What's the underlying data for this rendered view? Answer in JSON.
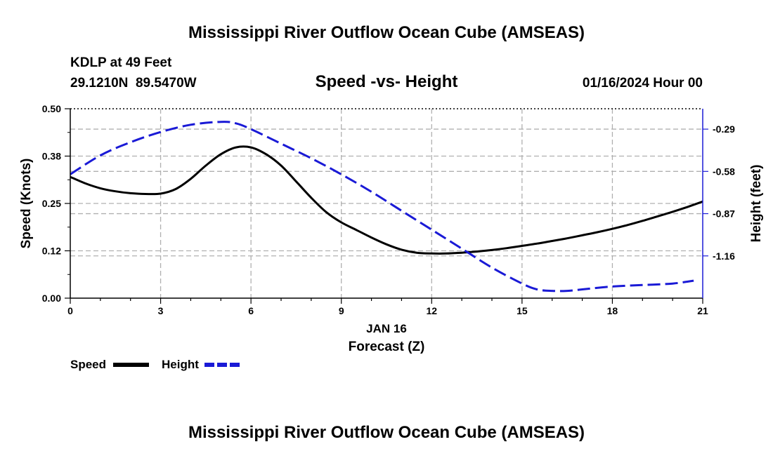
{
  "chart_data": {
    "type": "line",
    "title": "Mississippi River Outflow Ocean Cube (AMSEAS)",
    "footer_title": "Mississippi River Outflow Ocean Cube (AMSEAS)",
    "station": "KDLP at 49 Feet",
    "coordinates": "29.1210N  89.5470W",
    "subtitle": "Speed -vs- Height",
    "datetime": "01/16/2024 Hour 00",
    "xlabel": "Forecast (Z)",
    "date_label": "JAN 16",
    "ylabel": "Speed (Knots)",
    "y2label": "Height (feet)",
    "xlim": [
      0,
      21
    ],
    "ylim": [
      0,
      0.5
    ],
    "y2lim": [
      -1.45,
      -0.15
    ],
    "x_ticks": [
      0,
      3,
      6,
      9,
      12,
      15,
      18,
      21
    ],
    "x_tick_labels": [
      "0",
      "3",
      "6",
      "9",
      "12",
      "15",
      "18",
      "21"
    ],
    "y_ticks": [
      0,
      0.125,
      0.25,
      0.375,
      0.5
    ],
    "y_tick_labels": [
      "0.00",
      "0.12",
      "0.25",
      "0.38",
      "0.50"
    ],
    "y2_ticks": [
      -0.29,
      -0.58,
      -0.87,
      -1.16
    ],
    "y2_tick_labels": [
      "-0.29",
      "-0.58",
      "-0.87",
      "-1.16"
    ],
    "grid": true,
    "legend_position": "bottom-left",
    "series": [
      {
        "name": "Speed",
        "axis": "left",
        "color": "#000000",
        "style": "solid",
        "x": [
          0,
          0.5,
          1,
          1.5,
          2,
          2.5,
          3,
          3.5,
          4,
          4.5,
          5,
          5.5,
          6,
          6.5,
          7,
          7.5,
          8,
          8.5,
          9,
          9.5,
          10,
          10.5,
          11,
          11.5,
          12,
          12.5,
          13,
          13.5,
          14,
          14.5,
          15,
          15.5,
          16,
          16.5,
          17,
          17.5,
          18,
          18.5,
          19,
          19.5,
          20,
          20.5,
          21
        ],
        "values": [
          0.32,
          0.303,
          0.29,
          0.282,
          0.277,
          0.275,
          0.276,
          0.288,
          0.315,
          0.35,
          0.38,
          0.398,
          0.398,
          0.38,
          0.35,
          0.308,
          0.265,
          0.227,
          0.2,
          0.18,
          0.16,
          0.142,
          0.128,
          0.12,
          0.118,
          0.118,
          0.12,
          0.123,
          0.127,
          0.132,
          0.138,
          0.144,
          0.151,
          0.158,
          0.166,
          0.174,
          0.183,
          0.193,
          0.204,
          0.216,
          0.228,
          0.241,
          0.255
        ]
      },
      {
        "name": "Height",
        "axis": "right",
        "color": "#1a1ad6",
        "style": "dashed",
        "x": [
          0,
          1,
          2,
          3,
          4,
          5,
          5.5,
          6,
          7,
          8,
          9,
          10,
          11,
          12,
          13,
          14,
          15,
          15.5,
          16,
          16.5,
          17,
          18,
          19,
          20,
          20.7
        ],
        "values": [
          -0.6,
          -0.47,
          -0.38,
          -0.31,
          -0.26,
          -0.24,
          -0.25,
          -0.29,
          -0.39,
          -0.49,
          -0.6,
          -0.72,
          -0.85,
          -0.98,
          -1.11,
          -1.24,
          -1.35,
          -1.39,
          -1.4,
          -1.4,
          -1.39,
          -1.37,
          -1.36,
          -1.35,
          -1.33
        ]
      }
    ]
  }
}
